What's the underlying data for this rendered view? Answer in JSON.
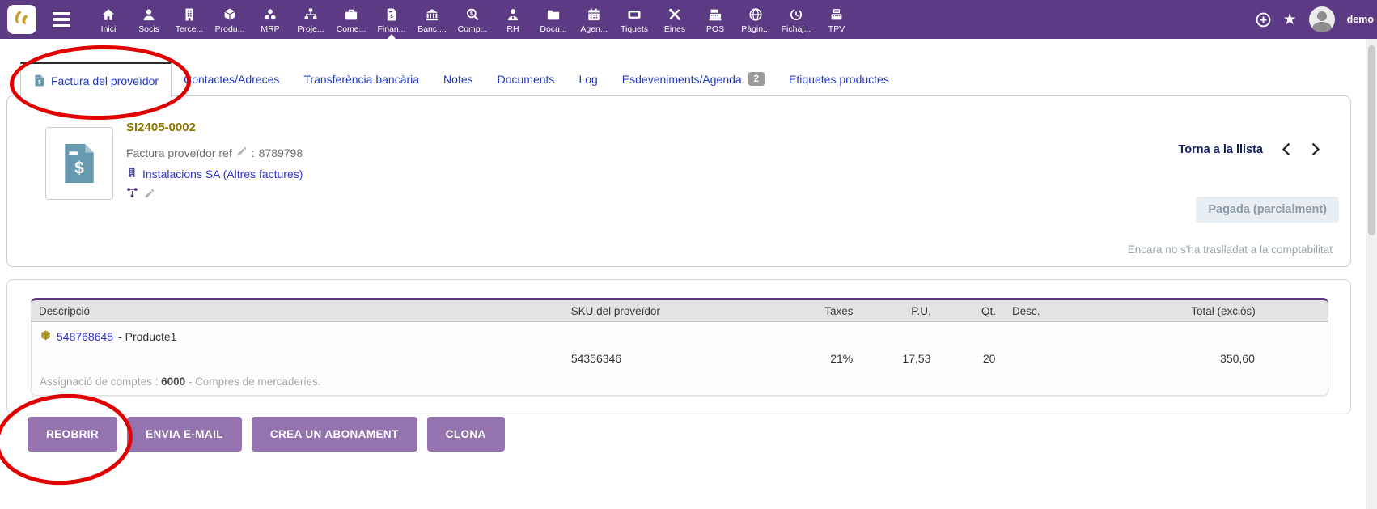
{
  "topbar": {
    "items": [
      {
        "name": "inici",
        "label": "Inici",
        "icon": "home-icon"
      },
      {
        "name": "socis",
        "label": "Socis",
        "icon": "user-icon"
      },
      {
        "name": "tercers",
        "label": "Terce...",
        "icon": "building-icon"
      },
      {
        "name": "productes",
        "label": "Produ...",
        "icon": "cube-icon"
      },
      {
        "name": "mrp",
        "label": "MRP",
        "icon": "mrp-icon"
      },
      {
        "name": "projectes",
        "label": "Proje...",
        "icon": "sitemap-icon"
      },
      {
        "name": "comercial",
        "label": "Come...",
        "icon": "briefcase-icon"
      },
      {
        "name": "finances",
        "label": "Finan...",
        "icon": "invoice-icon",
        "active": true
      },
      {
        "name": "bancs",
        "label": "Banc ...",
        "icon": "bank-icon"
      },
      {
        "name": "comptabilitat",
        "label": "Comp...",
        "icon": "search-dollar-icon"
      },
      {
        "name": "rh",
        "label": "RH",
        "icon": "user-tie-icon"
      },
      {
        "name": "documents",
        "label": "Docu...",
        "icon": "folder-icon"
      },
      {
        "name": "agenda",
        "label": "Agen...",
        "icon": "calendar-icon"
      },
      {
        "name": "tiquets",
        "label": "Tiquets",
        "icon": "ticket-icon"
      },
      {
        "name": "eines",
        "label": "Eines",
        "icon": "tools-icon"
      },
      {
        "name": "pos",
        "label": "POS",
        "icon": "cash-register-icon"
      },
      {
        "name": "pagines",
        "label": "Pàgin...",
        "icon": "globe-icon"
      },
      {
        "name": "fichajes",
        "label": "Fichaj...",
        "icon": "time-clock-icon"
      },
      {
        "name": "tpv",
        "label": "TPV",
        "icon": "register-icon"
      }
    ],
    "user_label": "demo"
  },
  "tabs": {
    "active_index": 0,
    "items": [
      {
        "name": "factura-del-proveidor",
        "label": "Factura del proveïdor",
        "icon": "invoice-mini-icon"
      },
      {
        "name": "contactes-adreces",
        "label": "Contactes/Adreces"
      },
      {
        "name": "transferencia-bancaria",
        "label": "Transferència bancària"
      },
      {
        "name": "notes",
        "label": "Notes"
      },
      {
        "name": "documents",
        "label": "Documents"
      },
      {
        "name": "log",
        "label": "Log"
      },
      {
        "name": "esdeveniments-agenda",
        "label": "Esdeveniments/Agenda",
        "badge": "2"
      },
      {
        "name": "etiquetes-productes",
        "label": "Etiquetes productes"
      }
    ]
  },
  "invoice": {
    "ref": "SI2405-0002",
    "supplier_ref_label": "Factura proveïdor ref",
    "supplier_ref_separator": ":",
    "supplier_ref_value": "8789798",
    "company": "Instalacions SA (Altres factures)",
    "back_to_list_label": "Torna a la llista",
    "status_badge": "Pagada (parcialment)",
    "accounting_note": "Encara no s'ha traslladat a la comptabilitat"
  },
  "lines_table": {
    "columns": [
      "Descripció",
      "SKU del proveïdor",
      "Taxes",
      "P.U.",
      "Qt.",
      "Desc.",
      "Total (exclòs)",
      ""
    ],
    "row": {
      "product_link": "548768645",
      "product_name": "- Producte1",
      "account_label": "Assignació de comptes :",
      "account_code": "6000",
      "account_name": "- Compres de mercaderies.",
      "sku": "54356346",
      "taxes": "21%",
      "unit_price": "17,53",
      "qty": "20",
      "discount": "",
      "total": "350,60"
    }
  },
  "actions": {
    "buttons": [
      {
        "name": "reobrir",
        "label": "REOBRIR"
      },
      {
        "name": "envia-email",
        "label": "ENVIA E-MAIL"
      },
      {
        "name": "crea-un-abonament",
        "label": "CREA UN ABONAMENT"
      },
      {
        "name": "clona",
        "label": "CLONA"
      }
    ]
  },
  "colors": {
    "topbar": "#5d3a84",
    "button": "#9473ae",
    "tab_link": "#2038c8",
    "record_link": "#3434cf",
    "ref_title": "#8a7500",
    "status_badge_bg": "#e8eef2",
    "status_badge_text": "#8d9ba6",
    "annotation": "#e10000"
  }
}
